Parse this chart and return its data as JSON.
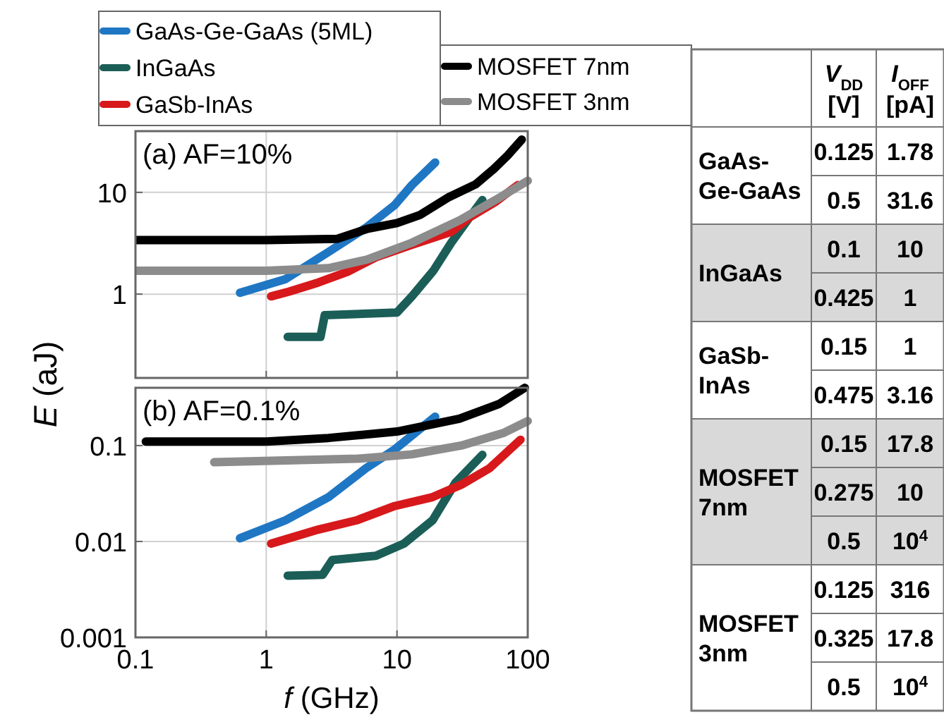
{
  "chart_data": [
    {
      "type": "line",
      "title": "(a) AF=10%",
      "log": "xy",
      "grid": true,
      "legend": "top",
      "tick_labels": "y",
      "xlim": [
        0.1,
        100
      ],
      "ylim": [
        0.15,
        40
      ],
      "xticks": [
        0.1,
        1,
        10,
        100
      ],
      "yticks": [
        1,
        10
      ],
      "line_style": "solid",
      "series": [
        {
          "name": "GaAs-Ge-GaAs (5ML)",
          "color": "#1f77c4",
          "x": [
            0.63,
            1.4,
            3,
            5.8,
            9.6,
            13,
            19.6
          ],
          "values": [
            1.03,
            1.4,
            2.6,
            4.5,
            7.5,
            11.8,
            19.7
          ]
        },
        {
          "name": "InGaAs",
          "color": "#1b5e57",
          "x": [
            1.46,
            2.6,
            2.8,
            10,
            13,
            19,
            26,
            36,
            45
          ],
          "values": [
            0.38,
            0.38,
            0.62,
            0.66,
            0.95,
            1.7,
            3.2,
            5.7,
            8.4
          ]
        },
        {
          "name": "GaSb-InAs",
          "color": "#d7191c",
          "x": [
            1.09,
            1.5,
            2.5,
            4.2,
            6.9,
            13.4,
            26,
            36,
            56,
            84
          ],
          "values": [
            0.95,
            1.06,
            1.3,
            1.66,
            2.3,
            3.1,
            4.1,
            5.7,
            8,
            11.8
          ]
        },
        {
          "name": "MOSFET 7nm",
          "color": "#000000",
          "x": [
            0.1,
            1,
            3.5,
            6,
            10,
            15,
            25,
            40,
            55,
            70,
            90
          ],
          "values": [
            3.4,
            3.4,
            3.5,
            4.4,
            5,
            6,
            9,
            12,
            17,
            23,
            33
          ]
        },
        {
          "name": "MOSFET 3nm",
          "color": "#8c8c8c",
          "x": [
            0.1,
            1,
            3,
            6,
            13,
            30,
            60,
            100
          ],
          "values": [
            1.7,
            1.7,
            1.8,
            2.2,
            3.2,
            5.3,
            8.8,
            13
          ]
        }
      ]
    },
    {
      "type": "line",
      "title": "(b) AF=0.1%",
      "log": "xy",
      "grid": true,
      "xlabel": "f (GHz)",
      "ylabel": "E (aJ)",
      "xlim": [
        0.1,
        100
      ],
      "ylim": [
        0.001,
        0.4
      ],
      "xticks": [
        0.1,
        1,
        10,
        100
      ],
      "yticks": [
        {
          "value": 0.001,
          "label": "0.001"
        },
        {
          "value": 0.01,
          "label": "0.01"
        },
        {
          "value": 0.1,
          "label": "0.1"
        }
      ],
      "line_style": "solid",
      "series": [
        {
          "color": "#1f77c4",
          "x": [
            0.63,
            1.4,
            3,
            5.8,
            9.6,
            19.6
          ],
          "values": [
            0.0108,
            0.0166,
            0.029,
            0.058,
            0.091,
            0.2
          ]
        },
        {
          "color": "#1b5e57",
          "x": [
            1.46,
            2.7,
            3.2,
            6.9,
            11.3,
            18.7,
            28,
            45
          ],
          "values": [
            0.0044,
            0.0045,
            0.0064,
            0.0071,
            0.0095,
            0.0166,
            0.041,
            0.08
          ]
        },
        {
          "color": "#d7191c",
          "x": [
            1.09,
            2.5,
            4.9,
            9.6,
            18.7,
            31,
            51,
            88
          ],
          "values": [
            0.0095,
            0.0133,
            0.0166,
            0.0234,
            0.029,
            0.039,
            0.058,
            0.115
          ]
        },
        {
          "color": "#000000",
          "x": [
            0.12,
            1,
            3,
            10,
            30,
            60,
            95
          ],
          "values": [
            0.11,
            0.11,
            0.12,
            0.14,
            0.19,
            0.27,
            0.4
          ]
        },
        {
          "color": "#8c8c8c",
          "x": [
            0.4,
            5,
            13,
            31,
            66,
            100
          ],
          "values": [
            0.067,
            0.073,
            0.081,
            0.1,
            0.136,
            0.18
          ]
        }
      ]
    },
    {
      "type": "other",
      "categories": [
        "V$_{DD}$ [V]",
        "I$_{OFF}$ [pA]"
      ],
      "y_categories": [
        "GaAs-Ge-GaAs",
        null,
        "InGaAs",
        null,
        "GaSb-InAs",
        null,
        "MOSFET 7nm",
        null,
        null,
        "MOSFET 3nm",
        null,
        null
      ],
      "cell_labels": [
        [
          "0.125",
          "1.78"
        ],
        [
          "0.5",
          "31.6"
        ],
        [
          "0.1",
          "10"
        ],
        [
          "0.425",
          "1"
        ],
        [
          "0.15",
          "1"
        ],
        [
          "0.475",
          "3.16"
        ],
        [
          "0.15",
          "17.8"
        ],
        [
          "0.275",
          "10"
        ],
        [
          "0.5",
          "10$^{4}$"
        ],
        [
          "0.125",
          "316"
        ],
        [
          "0.325",
          "17.8"
        ],
        [
          "0.5",
          "10$^{4}$"
        ]
      ]
    }
  ]
}
